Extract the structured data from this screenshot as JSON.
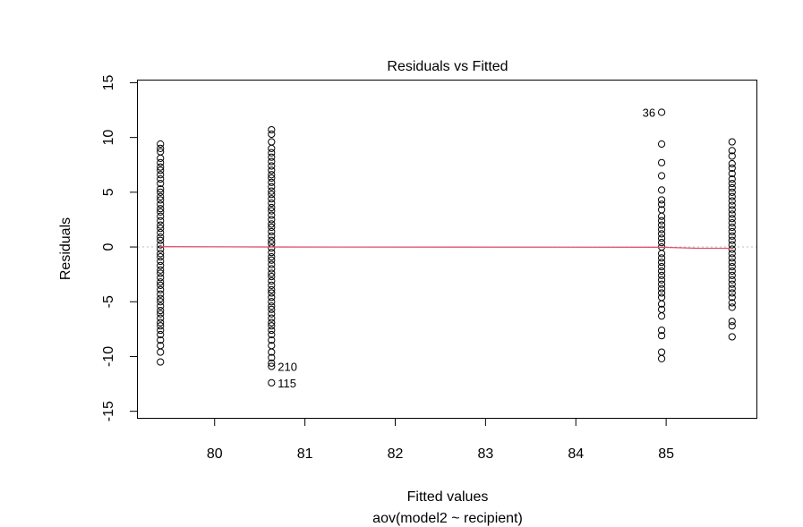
{
  "chart_data": {
    "type": "scatter",
    "title": "Residuals vs Fitted",
    "xlabel": "Fitted values",
    "subtitle": "aov(model2 ~ recipient)",
    "ylabel": "Residuals",
    "xlim": [
      79.15,
      86.0
    ],
    "ylim": [
      -15.6,
      15.2
    ],
    "x_ticks": [
      80,
      81,
      82,
      83,
      84,
      85
    ],
    "x_tick_labels": [
      "80",
      "81",
      "82",
      "83",
      "84",
      "85"
    ],
    "y_ticks": [
      -15,
      -10,
      -5,
      0,
      5,
      10,
      15
    ],
    "y_tick_labels": [
      "-15",
      "-10",
      "-5",
      "0",
      "5",
      "10",
      "15"
    ],
    "zero_line": true,
    "colors": {
      "points": "#000000",
      "smooth": "#df536b",
      "reference": "#bebebe"
    },
    "groups": [
      {
        "fitted": 79.4,
        "residuals": [
          9.4,
          9.0,
          8.7,
          8.1,
          7.7,
          7.3,
          7.0,
          6.6,
          6.2,
          5.8,
          5.3,
          5.0,
          4.6,
          4.3,
          3.9,
          3.5,
          3.2,
          2.8,
          2.4,
          2.0,
          1.7,
          1.3,
          0.9,
          0.6,
          0.2,
          -0.2,
          -0.6,
          -0.9,
          -1.3,
          -1.7,
          -2.1,
          -2.4,
          -2.8,
          -3.2,
          -3.5,
          -3.9,
          -4.3,
          -4.7,
          -5.0,
          -5.4,
          -5.8,
          -6.1,
          -6.5,
          -6.9,
          -7.2,
          -7.6,
          -8.0,
          -8.5,
          -9.0,
          -9.6,
          -10.5
        ]
      },
      {
        "fitted": 80.63,
        "residuals": [
          10.7,
          10.3,
          9.6,
          9.0,
          8.6,
          8.2,
          7.8,
          7.4,
          7.0,
          6.6,
          6.3,
          5.9,
          5.5,
          5.1,
          4.8,
          4.4,
          4.0,
          3.6,
          3.3,
          2.9,
          2.5,
          2.1,
          1.8,
          1.4,
          1.0,
          0.6,
          0.3,
          -0.1,
          -0.5,
          -0.9,
          -1.2,
          -1.6,
          -2.0,
          -2.4,
          -2.7,
          -3.1,
          -3.5,
          -3.9,
          -4.2,
          -4.6,
          -5.0,
          -5.4,
          -5.7,
          -6.1,
          -6.5,
          -6.9,
          -7.2,
          -7.6,
          -8.0,
          -8.5,
          -9.0,
          -9.6,
          -10.1,
          -10.6,
          -10.9,
          -12.4
        ]
      },
      {
        "fitted": 84.95,
        "residuals": [
          12.3,
          9.4,
          7.7,
          6.5,
          5.2,
          4.3,
          3.9,
          3.4,
          2.8,
          2.4,
          2.0,
          1.6,
          1.2,
          0.8,
          0.4,
          0.0,
          -0.6,
          -1.0,
          -1.4,
          -1.8,
          -2.2,
          -2.6,
          -3.0,
          -3.4,
          -3.8,
          -4.2,
          -4.6,
          -5.2,
          -5.7,
          -6.3,
          -7.6,
          -8.1,
          -9.6,
          -10.2
        ]
      },
      {
        "fitted": 85.73,
        "residuals": [
          9.6,
          8.8,
          8.3,
          7.6,
          7.2,
          6.7,
          6.2,
          5.8,
          5.4,
          5.0,
          4.6,
          4.2,
          3.8,
          3.4,
          3.0,
          2.6,
          2.2,
          1.8,
          1.4,
          1.0,
          0.6,
          0.2,
          -0.2,
          -0.6,
          -1.0,
          -1.4,
          -1.8,
          -2.2,
          -2.6,
          -3.0,
          -3.4,
          -3.8,
          -4.2,
          -4.6,
          -5.1,
          -5.5,
          -6.8,
          -7.2,
          -8.2
        ]
      }
    ],
    "smooth_line": [
      {
        "x": 79.4,
        "y": 0.03
      },
      {
        "x": 80.63,
        "y": 0.0
      },
      {
        "x": 84.95,
        "y": -0.02
      },
      {
        "x": 85.35,
        "y": -0.12
      },
      {
        "x": 85.73,
        "y": -0.12
      }
    ],
    "annotations": [
      {
        "text": "210",
        "x": 80.63,
        "y": -10.9,
        "side": "right"
      },
      {
        "text": "115",
        "x": 80.63,
        "y": -12.4,
        "side": "right"
      },
      {
        "text": "36",
        "x": 84.95,
        "y": 12.3,
        "side": "left"
      }
    ]
  }
}
